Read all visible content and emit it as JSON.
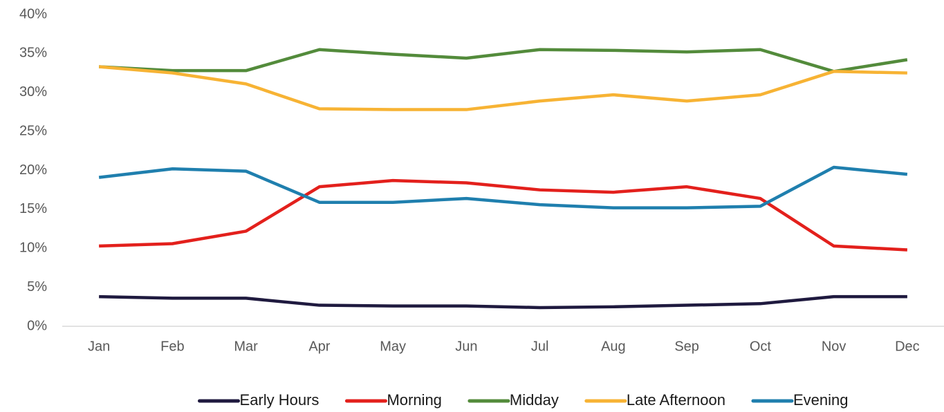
{
  "chart_data": {
    "type": "line",
    "categories": [
      "Jan",
      "Feb",
      "Mar",
      "Apr",
      "May",
      "Jun",
      "Jul",
      "Aug",
      "Sep",
      "Oct",
      "Nov",
      "Dec"
    ],
    "series": [
      {
        "name": "Early Hours",
        "color": "#1f1a3f",
        "values": [
          3.8,
          3.6,
          3.6,
          2.7,
          2.6,
          2.6,
          2.4,
          2.5,
          2.7,
          2.9,
          3.8,
          3.8
        ]
      },
      {
        "name": "Morning",
        "color": "#e3201c",
        "values": [
          10.3,
          10.6,
          12.2,
          17.9,
          18.7,
          18.4,
          17.5,
          17.2,
          17.9,
          16.4,
          10.3,
          9.8
        ]
      },
      {
        "name": "Midday",
        "color": "#538b3b",
        "values": [
          33.3,
          32.8,
          32.8,
          35.5,
          34.9,
          34.4,
          35.5,
          35.4,
          35.2,
          35.5,
          32.7,
          34.2
        ]
      },
      {
        "name": "Late Afternoon",
        "color": "#f7b334",
        "values": [
          33.3,
          32.5,
          31.1,
          27.9,
          27.8,
          27.8,
          28.9,
          29.7,
          28.9,
          29.7,
          32.7,
          32.5
        ]
      },
      {
        "name": "Evening",
        "color": "#1f7fae",
        "values": [
          19.1,
          20.2,
          19.9,
          15.9,
          15.9,
          16.4,
          15.6,
          15.2,
          15.2,
          15.4,
          20.4,
          19.5
        ]
      }
    ],
    "ylim": [
      0,
      40
    ],
    "yticks": [
      {
        "value": 0,
        "label": "0%"
      },
      {
        "value": 5,
        "label": "5%"
      },
      {
        "value": 10,
        "label": "10%"
      },
      {
        "value": 15,
        "label": "15%"
      },
      {
        "value": 20,
        "label": "20%"
      },
      {
        "value": 25,
        "label": "25%"
      },
      {
        "value": 30,
        "label": "30%"
      },
      {
        "value": 35,
        "label": "35%"
      },
      {
        "value": 40,
        "label": "40%"
      }
    ],
    "grid": false,
    "legend": "bottom"
  }
}
